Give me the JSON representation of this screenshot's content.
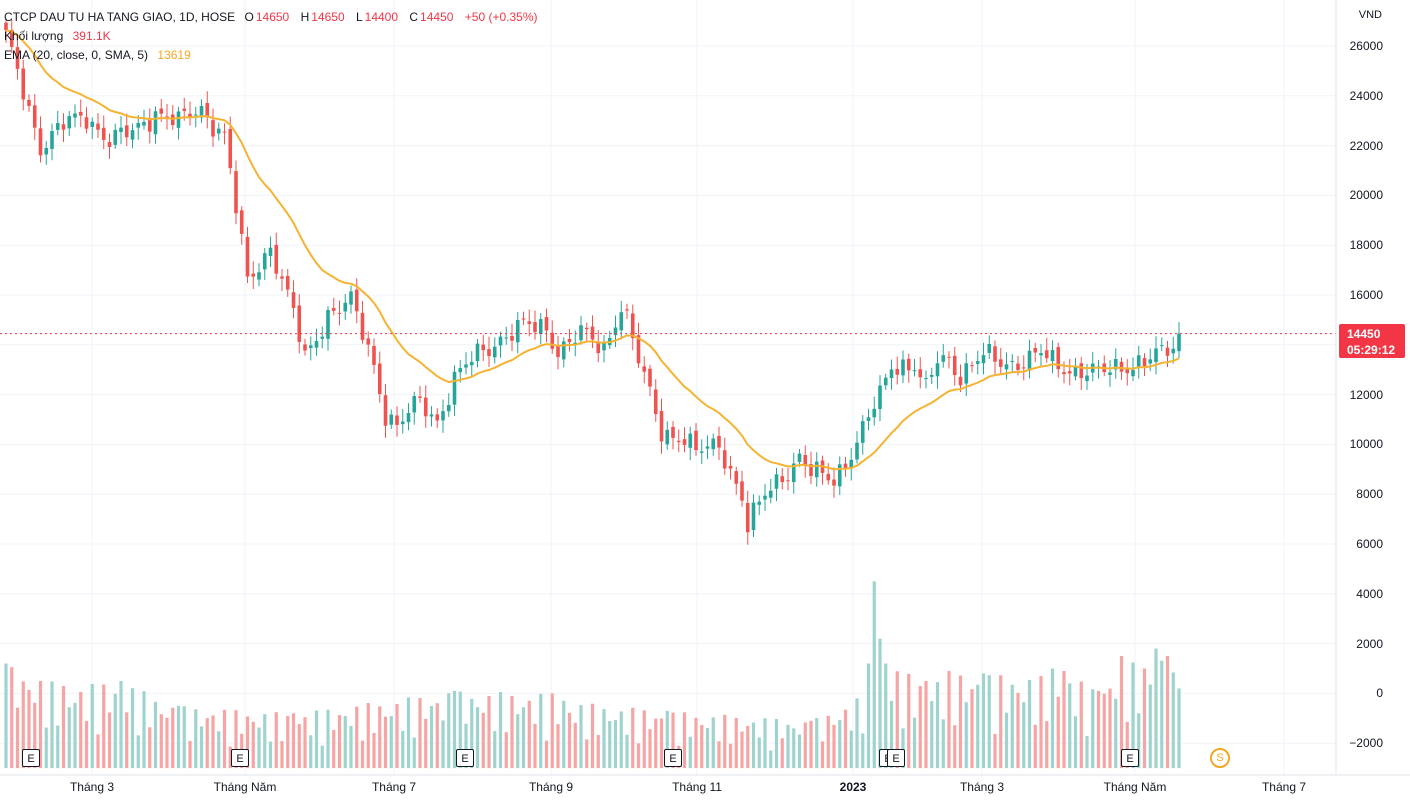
{
  "legend": {
    "symbol": "CTCP DAU TU HA TANG GIAO, 1D, HOSE",
    "o_label": "O",
    "o": "14650",
    "h_label": "H",
    "h": "14650",
    "l_label": "L",
    "l": "14400",
    "c_label": "C",
    "c": "14450",
    "change": "+50 (+0.35%)",
    "vol_label": "Khối lượng",
    "vol": "391.1K",
    "ema_label": "EMA (20, close, 0, SMA, 5)",
    "ema": "13619"
  },
  "price_tag": {
    "price": "14450",
    "countdown": "05:29:12"
  },
  "events": {
    "earnings": "E",
    "split": "S"
  },
  "colors": {
    "up": "#26a69a",
    "down": "#ef5350",
    "ema": "#f5b331",
    "price_line": "#f23645"
  },
  "chart_data": {
    "type": "candlestick",
    "unit": "VND",
    "yticks": [
      26000,
      24000,
      22000,
      20000,
      18000,
      16000,
      14000,
      12000,
      10000,
      8000,
      6000,
      4000,
      2000,
      0,
      -2000
    ],
    "ylim": [
      -3000,
      27000
    ],
    "xticks": [
      {
        "label": "Tháng 3",
        "bold": false
      },
      {
        "label": "Tháng Năm",
        "bold": false
      },
      {
        "label": "Tháng 7",
        "bold": false
      },
      {
        "label": "Tháng 9",
        "bold": false
      },
      {
        "label": "Tháng 11",
        "bold": false
      },
      {
        "label": "2023",
        "bold": true
      },
      {
        "label": "Tháng 3",
        "bold": false
      },
      {
        "label": "Tháng Năm",
        "bold": false
      },
      {
        "label": "Tháng 7",
        "bold": false
      }
    ],
    "last_close": 14450,
    "price_path": [
      [
        0,
        26300
      ],
      [
        4,
        23500
      ],
      [
        6,
        22000
      ],
      [
        10,
        22800
      ],
      [
        14,
        23200
      ],
      [
        18,
        22200
      ],
      [
        22,
        22500
      ],
      [
        26,
        23400
      ],
      [
        30,
        22900
      ],
      [
        34,
        23500
      ],
      [
        38,
        22400
      ],
      [
        42,
        16500
      ],
      [
        46,
        18000
      ],
      [
        50,
        15200
      ],
      [
        52,
        13400
      ],
      [
        56,
        15300
      ],
      [
        60,
        15700
      ],
      [
        64,
        13200
      ],
      [
        66,
        11300
      ],
      [
        68,
        10700
      ],
      [
        72,
        11700
      ],
      [
        75,
        11000
      ],
      [
        78,
        12600
      ],
      [
        82,
        13600
      ],
      [
        86,
        14300
      ],
      [
        90,
        14700
      ],
      [
        94,
        14700
      ],
      [
        96,
        13800
      ],
      [
        100,
        14400
      ],
      [
        104,
        13900
      ],
      [
        107,
        15600
      ],
      [
        108,
        15000
      ],
      [
        110,
        13300
      ],
      [
        112,
        12000
      ],
      [
        114,
        10600
      ],
      [
        118,
        10200
      ],
      [
        120,
        9600
      ],
      [
        124,
        10100
      ],
      [
        126,
        9000
      ],
      [
        128,
        7800
      ],
      [
        129,
        6600
      ],
      [
        132,
        8000
      ],
      [
        134,
        8600
      ],
      [
        138,
        9400
      ],
      [
        140,
        8800
      ],
      [
        144,
        8700
      ],
      [
        148,
        10000
      ],
      [
        152,
        12000
      ],
      [
        154,
        13300
      ],
      [
        158,
        13100
      ],
      [
        160,
        12100
      ],
      [
        162,
        13400
      ],
      [
        164,
        13500
      ],
      [
        166,
        12800
      ],
      [
        170,
        13500
      ],
      [
        174,
        13300
      ],
      [
        178,
        13400
      ],
      [
        180,
        13600
      ],
      [
        182,
        13300
      ],
      [
        186,
        13000
      ],
      [
        190,
        12800
      ],
      [
        194,
        13200
      ],
      [
        198,
        13300
      ],
      [
        202,
        13700
      ],
      [
        204,
        14450
      ]
    ],
    "volume": {
      "baseline": -3000,
      "peak": 4500,
      "spikes": [
        [
          0,
          1200
        ],
        [
          10,
          300
        ],
        [
          20,
          500
        ],
        [
          30,
          -500
        ],
        [
          50,
          -800
        ],
        [
          78,
          100
        ],
        [
          95,
          0
        ],
        [
          97,
          -300
        ],
        [
          115,
          -700
        ],
        [
          140,
          -1100
        ],
        [
          148,
          -200
        ],
        [
          150,
          1200
        ],
        [
          151,
          4500
        ],
        [
          152,
          2200
        ],
        [
          153,
          1200
        ],
        [
          160,
          500
        ],
        [
          164,
          900
        ],
        [
          170,
          800
        ],
        [
          180,
          700
        ],
        [
          182,
          1000
        ],
        [
          184,
          900
        ],
        [
          190,
          100
        ],
        [
          194,
          1500
        ],
        [
          198,
          1000
        ],
        [
          200,
          1800
        ],
        [
          202,
          1500
        ],
        [
          204,
          200
        ]
      ]
    }
  }
}
